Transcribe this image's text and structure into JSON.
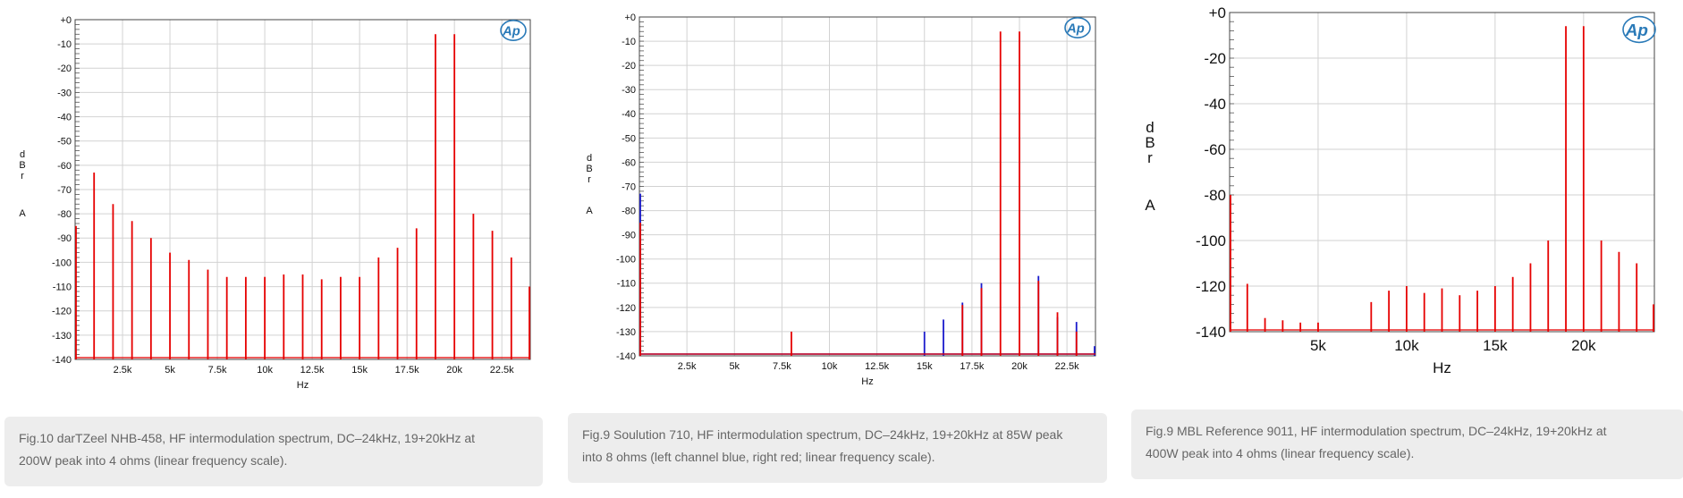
{
  "chart_data": [
    {
      "type": "line",
      "title": "",
      "xlabel": "Hz",
      "ylabel": [
        "d",
        "B",
        "r",
        "A"
      ],
      "xlim": [
        0,
        24000
      ],
      "ylim": [
        -140,
        0
      ],
      "grid": true,
      "logo": "Ap",
      "ytick_labels": [
        "+0",
        "-10",
        "-20",
        "-30",
        "-40",
        "-50",
        "-60",
        "-70",
        "-80",
        "-90",
        "-100",
        "-110",
        "-120",
        "-130",
        "-140"
      ],
      "xticks": [
        2500,
        5000,
        7500,
        10000,
        12500,
        15000,
        17500,
        20000,
        22500
      ],
      "xtick_labels": [
        "2.5k",
        "5k",
        "7.5k",
        "10k",
        "12.5k",
        "15k",
        "17.5k",
        "20k",
        "22.5k"
      ],
      "series": [
        {
          "color": "#e60000",
          "peaks": [
            {
              "x": 0,
              "y": -85
            },
            {
              "x": 1000,
              "y": -63
            },
            {
              "x": 2000,
              "y": -76
            },
            {
              "x": 3000,
              "y": -83
            },
            {
              "x": 4000,
              "y": -90
            },
            {
              "x": 5000,
              "y": -96
            },
            {
              "x": 6000,
              "y": -99
            },
            {
              "x": 7000,
              "y": -103
            },
            {
              "x": 8000,
              "y": -106
            },
            {
              "x": 9000,
              "y": -106
            },
            {
              "x": 10000,
              "y": -106
            },
            {
              "x": 11000,
              "y": -105
            },
            {
              "x": 12000,
              "y": -105
            },
            {
              "x": 13000,
              "y": -107
            },
            {
              "x": 14000,
              "y": -106
            },
            {
              "x": 15000,
              "y": -106
            },
            {
              "x": 16000,
              "y": -98
            },
            {
              "x": 17000,
              "y": -94
            },
            {
              "x": 18000,
              "y": -86
            },
            {
              "x": 19000,
              "y": -6
            },
            {
              "x": 20000,
              "y": -6
            },
            {
              "x": 21000,
              "y": -80
            },
            {
              "x": 22000,
              "y": -87
            },
            {
              "x": 23000,
              "y": -98
            },
            {
              "x": 24000,
              "y": -110
            }
          ]
        }
      ],
      "caption": [
        "Fig.10 darTZeel NHB-458, HF intermodulation spectrum, DC–24kHz, 19+20kHz at",
        "200W peak into 4 ohms (linear frequency scale)."
      ]
    },
    {
      "type": "line",
      "title": "",
      "xlabel": "Hz",
      "ylabel": [
        "d",
        "B",
        "r",
        "A"
      ],
      "xlim": [
        0,
        24000
      ],
      "ylim": [
        -140,
        0
      ],
      "grid": true,
      "logo": "Ap",
      "ytick_labels": [
        "+0",
        "-10",
        "-20",
        "-30",
        "-40",
        "-50",
        "-60",
        "-70",
        "-80",
        "-90",
        "-100",
        "-110",
        "-120",
        "-130",
        "-140"
      ],
      "xticks": [
        2500,
        5000,
        7500,
        10000,
        12500,
        15000,
        17500,
        20000,
        22500
      ],
      "xtick_labels": [
        "2.5k",
        "5k",
        "7.5k",
        "10k",
        "12.5k",
        "15k",
        "17.5k",
        "20k",
        "22.5k"
      ],
      "series": [
        {
          "color": "#1a1acc",
          "peaks": [
            {
              "x": 0,
              "y": -73
            },
            {
              "x": 15000,
              "y": -130
            },
            {
              "x": 16000,
              "y": -125
            },
            {
              "x": 17000,
              "y": -118
            },
            {
              "x": 18000,
              "y": -110
            },
            {
              "x": 21000,
              "y": -107
            },
            {
              "x": 22000,
              "y": -124
            },
            {
              "x": 23000,
              "y": -126
            },
            {
              "x": 24000,
              "y": -136
            }
          ]
        },
        {
          "color": "#e60000",
          "peaks": [
            {
              "x": 0,
              "y": -85
            },
            {
              "x": 8000,
              "y": -130
            },
            {
              "x": 17000,
              "y": -119
            },
            {
              "x": 18000,
              "y": -112
            },
            {
              "x": 19000,
              "y": -6
            },
            {
              "x": 20000,
              "y": -6
            },
            {
              "x": 21000,
              "y": -109
            },
            {
              "x": 22000,
              "y": -122
            },
            {
              "x": 23000,
              "y": -130
            }
          ]
        }
      ],
      "caption": [
        "Fig.9 Soulution 710, HF intermodulation spectrum, DC–24kHz, 19+20kHz at 85W peak",
        "into 8 ohms (left channel blue, right red; linear frequency scale)."
      ]
    },
    {
      "type": "line",
      "title": "",
      "xlabel": "Hz",
      "ylabel": [
        "d",
        "B",
        "r",
        "A"
      ],
      "xlim": [
        0,
        24000
      ],
      "ylim": [
        -140,
        0
      ],
      "grid": true,
      "logo": "Ap",
      "ytick_labels": [
        "+0",
        "-20",
        "-40",
        "-60",
        "-80",
        "-100",
        "-120",
        "-140"
      ],
      "xticks": [
        5000,
        10000,
        15000,
        20000
      ],
      "xtick_labels": [
        "5k",
        "10k",
        "15k",
        "20k"
      ],
      "series": [
        {
          "color": "#e60000",
          "peaks": [
            {
              "x": 0,
              "y": -80
            },
            {
              "x": 1000,
              "y": -119
            },
            {
              "x": 2000,
              "y": -134
            },
            {
              "x": 3000,
              "y": -135
            },
            {
              "x": 4000,
              "y": -136
            },
            {
              "x": 5000,
              "y": -136
            },
            {
              "x": 8000,
              "y": -127
            },
            {
              "x": 9000,
              "y": -122
            },
            {
              "x": 10000,
              "y": -120
            },
            {
              "x": 11000,
              "y": -123
            },
            {
              "x": 12000,
              "y": -121
            },
            {
              "x": 13000,
              "y": -124
            },
            {
              "x": 14000,
              "y": -122
            },
            {
              "x": 15000,
              "y": -120
            },
            {
              "x": 16000,
              "y": -116
            },
            {
              "x": 17000,
              "y": -110
            },
            {
              "x": 18000,
              "y": -100
            },
            {
              "x": 19000,
              "y": -6
            },
            {
              "x": 20000,
              "y": -6
            },
            {
              "x": 21000,
              "y": -100
            },
            {
              "x": 22000,
              "y": -105
            },
            {
              "x": 23000,
              "y": -110
            },
            {
              "x": 24000,
              "y": -128
            }
          ]
        }
      ],
      "caption": [
        "Fig.9 MBL Reference 9011, HF intermodulation spectrum, DC–24kHz, 19+20kHz at",
        "400W peak into 4 ohms (linear frequency scale)."
      ]
    }
  ]
}
